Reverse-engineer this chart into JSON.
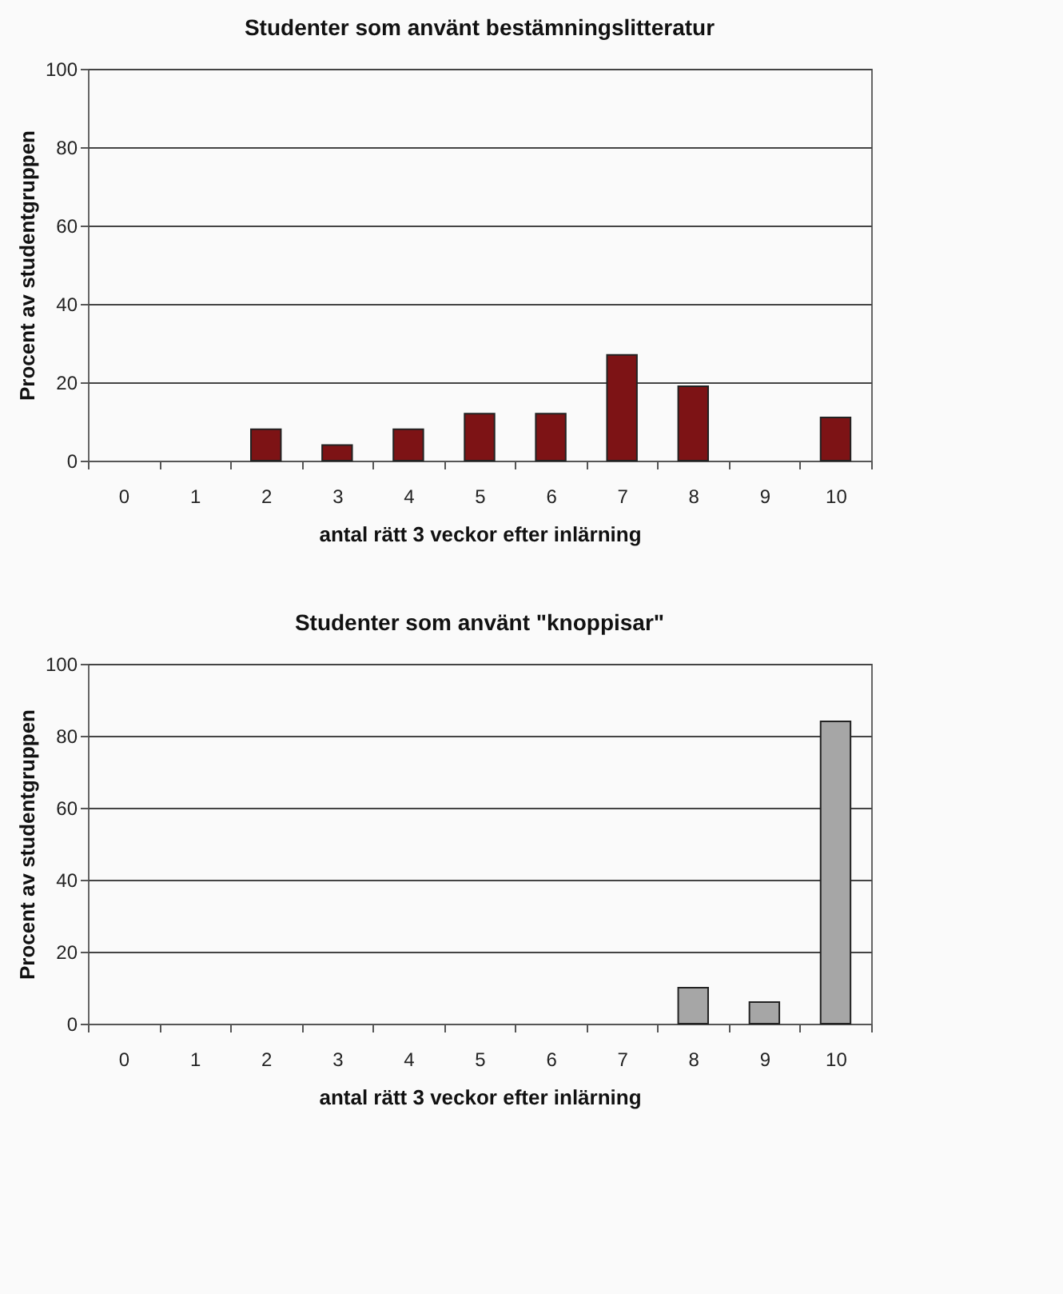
{
  "chart_data": [
    {
      "type": "bar",
      "title": "Studenter som använt bestämningslitteratur",
      "xlabel": "antal rätt 3 veckor efter inlärning",
      "ylabel": "Procent av studentgruppen",
      "categories": [
        "0",
        "1",
        "2",
        "3",
        "4",
        "5",
        "6",
        "7",
        "8",
        "9",
        "10"
      ],
      "values": [
        null,
        null,
        8,
        4,
        8,
        12,
        12,
        27,
        19,
        null,
        11
      ],
      "color": "#7d1315",
      "ylim": [
        0,
        100
      ],
      "yticks": [
        0,
        20,
        40,
        60,
        80,
        100
      ],
      "grid": "y"
    },
    {
      "type": "bar",
      "title": "Studenter som använt \"knoppisar\"",
      "xlabel": "antal rätt 3 veckor efter inlärning",
      "ylabel": "Procent av studentgruppen",
      "categories": [
        "0",
        "1",
        "2",
        "3",
        "4",
        "5",
        "6",
        "7",
        "8",
        "9",
        "10"
      ],
      "values": [
        null,
        null,
        null,
        null,
        null,
        null,
        null,
        null,
        10,
        6,
        84
      ],
      "color": "#a6a6a6",
      "ylim": [
        0,
        100
      ],
      "yticks": [
        0,
        20,
        40,
        60,
        80,
        100
      ],
      "grid": "y"
    }
  ]
}
